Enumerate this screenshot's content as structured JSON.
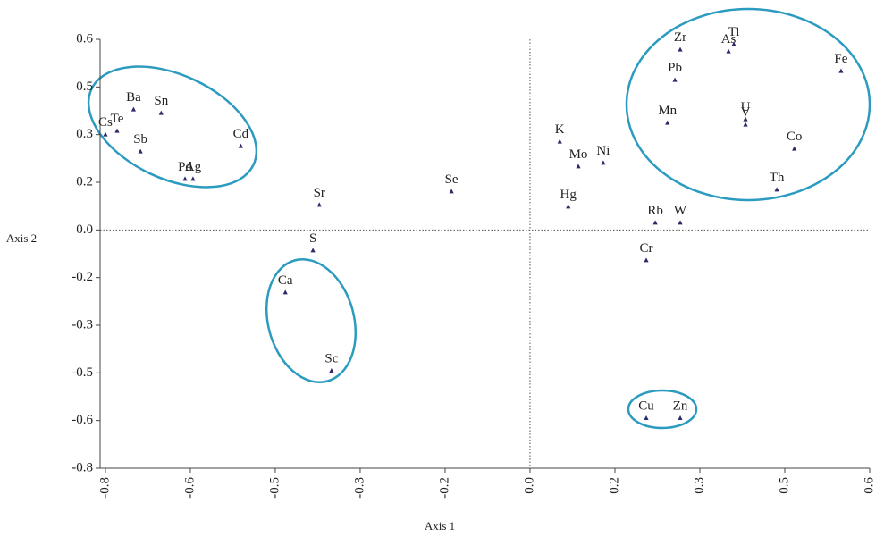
{
  "chart_data": {
    "type": "scatter",
    "xlabel": "Axis 1",
    "ylabel": "Axis 2",
    "point_labels": [
      "Cs",
      "Te",
      "Ba",
      "Sn",
      "Sb",
      "Cd",
      "Pd",
      "Ag",
      "Sr",
      "Se",
      "S",
      "Ca",
      "Sc",
      "K",
      "Mo",
      "Ni",
      "Hg",
      "Rb",
      "W",
      "Cr",
      "Cu",
      "Zn",
      "Zr",
      "Ti",
      "As",
      "Pb",
      "Fe",
      "Mn",
      "U",
      "V",
      "Co",
      "Th"
    ],
    "x": [
      -0.8,
      -0.778,
      -0.747,
      -0.695,
      -0.734,
      -0.545,
      -0.65,
      -0.635,
      -0.397,
      -0.148,
      -0.409,
      -0.461,
      -0.374,
      0.056,
      0.091,
      0.138,
      0.072,
      0.236,
      0.283,
      0.219,
      0.219,
      0.283,
      0.283,
      0.384,
      0.374,
      0.273,
      0.586,
      0.259,
      0.406,
      0.406,
      0.498,
      0.465
    ],
    "values": [
      0.32,
      0.332,
      0.404,
      0.392,
      0.263,
      0.281,
      0.171,
      0.171,
      0.084,
      0.129,
      -0.069,
      -0.21,
      -0.473,
      0.296,
      0.213,
      0.225,
      0.078,
      0.024,
      0.024,
      -0.102,
      -0.632,
      -0.632,
      0.605,
      0.623,
      0.599,
      0.503,
      0.533,
      0.359,
      0.371,
      0.353,
      0.272,
      0.135
    ],
    "color": "#2a2a6a",
    "xlim": [
      -0.81,
      0.64
    ],
    "ylim": [
      -0.8,
      0.64
    ],
    "xticks": [
      -0.8,
      {
        "value": -0.64,
        "label": "-0.6"
      },
      {
        "value": -0.48,
        "label": "-0.5"
      },
      {
        "value": -0.32,
        "label": "-0.3"
      },
      {
        "value": -0.16,
        "label": "-0.2"
      },
      {
        "value": 0,
        "label": "0.0"
      },
      {
        "value": 0.16,
        "label": "0.2"
      },
      {
        "value": 0.32,
        "label": "0.3"
      },
      {
        "value": 0.48,
        "label": "0.5"
      },
      {
        "value": 0.64,
        "label": "0.6"
      }
    ],
    "yticks": [
      -0.8,
      {
        "value": -0.64,
        "label": "-0.6"
      },
      {
        "value": -0.48,
        "label": "-0.5"
      },
      {
        "value": -0.32,
        "label": "-0.3"
      },
      {
        "value": -0.16,
        "label": "-0.2"
      },
      {
        "value": 0,
        "label": "0.0"
      },
      {
        "value": 0.16,
        "label": "0.2"
      },
      {
        "value": 0.32,
        "label": "0.3"
      },
      {
        "value": 0.48,
        "label": "0.5"
      },
      {
        "value": 0.64,
        "label": "0.6"
      }
    ]
  }
}
